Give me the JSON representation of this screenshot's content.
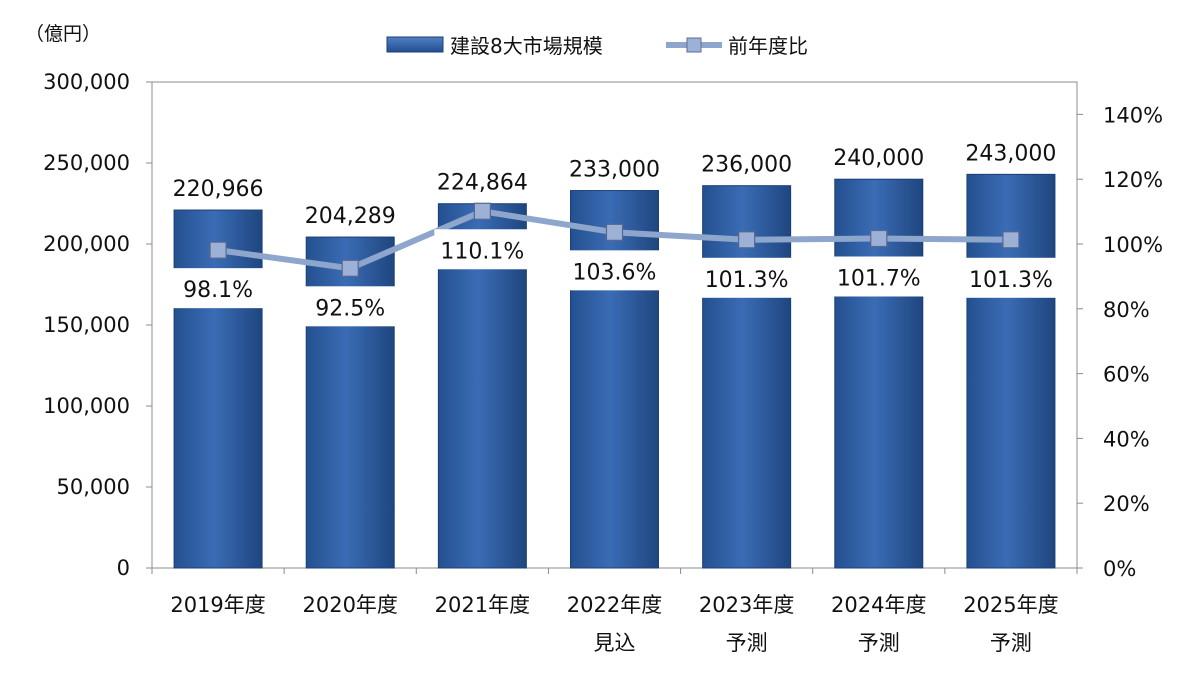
{
  "chart_data": {
    "type": "bar",
    "unit_label": "（億円）",
    "categories": [
      [
        "2019年度"
      ],
      [
        "2020年度"
      ],
      [
        "2021年度"
      ],
      [
        "2022年度",
        "見込"
      ],
      [
        "2023年度",
        "予測"
      ],
      [
        "2024年度",
        "予測"
      ],
      [
        "2025年度",
        "予測"
      ]
    ],
    "series": [
      {
        "name": "建設8大市場規模",
        "type": "bar",
        "axis": "left",
        "values": [
          220966,
          204289,
          224864,
          233000,
          236000,
          240000,
          243000
        ],
        "labels": [
          "220,966",
          "204,289",
          "224,864",
          "233,000",
          "236,000",
          "240,000",
          "243,000"
        ],
        "color": "#2e5fa8"
      },
      {
        "name": "前年度比",
        "type": "line",
        "axis": "right",
        "values": [
          98.1,
          92.5,
          110.1,
          103.6,
          101.3,
          101.7,
          101.3
        ],
        "labels": [
          "98.1%",
          "92.5%",
          "110.1%",
          "103.6%",
          "101.3%",
          "101.7%",
          "101.3%"
        ],
        "color": "#8fa6cc"
      }
    ],
    "y_left": {
      "range": [
        0,
        300000
      ],
      "ticks": [
        0,
        50000,
        100000,
        150000,
        200000,
        250000,
        300000
      ],
      "tick_labels": [
        "0",
        "50,000",
        "100,000",
        "150,000",
        "200,000",
        "250,000",
        "300,000"
      ]
    },
    "y_right": {
      "range": [
        0,
        150
      ],
      "ticks": [
        0,
        20,
        40,
        60,
        80,
        100,
        120,
        140
      ],
      "tick_labels": [
        "0%",
        "20%",
        "40%",
        "60%",
        "80%",
        "100%",
        "120%",
        "140%"
      ]
    },
    "grid": false,
    "legend": "top-center"
  }
}
